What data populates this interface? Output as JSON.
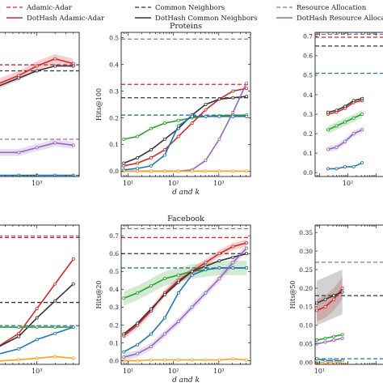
{
  "legend": {
    "items": [
      {
        "label": "Adamic-Adar",
        "color": "#d62728",
        "dashed": true
      },
      {
        "label": "DotHash Adamic-Adar",
        "color": "#d62728",
        "dashed": false
      },
      {
        "label": "Common Neighbors",
        "color": "#333333",
        "dashed": true
      },
      {
        "label": "DotHash Common Neighbors",
        "color": "#333333",
        "dashed": false
      },
      {
        "label": "Resource Allocation",
        "color": "#9467bd",
        "dashed": true
      },
      {
        "label": "DotHash Resource Allocation",
        "color": "#9467bd",
        "dashed": false
      }
    ]
  },
  "colors": {
    "red": "#d62728",
    "black": "#333333",
    "purple": "#9467bd",
    "blue": "#1f77b4",
    "green": "#2ca02c",
    "orange": "#ff9f1c"
  },
  "chart_data": [
    {
      "type": "line",
      "title": "",
      "xlabel": "",
      "ylabel": "",
      "xscale": "log",
      "xlim": [
        180,
        5000
      ],
      "ylim": [
        0,
        0.6
      ],
      "xticks": [
        {
          "v": 1000,
          "label": "10³"
        }
      ],
      "yticks": [],
      "series": [
        {
          "color": "red",
          "x": [
            200,
            500,
            1000,
            2000,
            4000
          ],
          "y": [
            0.38,
            0.42,
            0.46,
            0.49,
            0.47
          ],
          "band": 0.02
        },
        {
          "color": "black",
          "x": [
            200,
            500,
            1000,
            2000,
            4000
          ],
          "y": [
            0.37,
            0.41,
            0.44,
            0.46,
            0.46
          ]
        },
        {
          "color": "purple",
          "x": [
            200,
            500,
            1000,
            2000,
            4000
          ],
          "y": [
            0.1,
            0.1,
            0.12,
            0.14,
            0.13
          ],
          "band": 0.015
        },
        {
          "color": "blue",
          "x": [
            200,
            500,
            1000,
            2000,
            4000
          ],
          "y": [
            0.005,
            0.005,
            0.005,
            0.005,
            0.005
          ]
        }
      ],
      "hlines": [
        {
          "color": "red",
          "y": 0.465
        },
        {
          "color": "black",
          "y": 0.44
        },
        {
          "color": "purple",
          "y": 0.155
        },
        {
          "color": "blue",
          "y": 0.005
        }
      ]
    },
    {
      "type": "line",
      "title": "Proteins",
      "xlabel": "d and k",
      "ylabel": "Hits@100",
      "xscale": "log",
      "xlim": [
        7,
        5000
      ],
      "ylim": [
        -0.02,
        0.52
      ],
      "xticks": [
        {
          "v": 10,
          "label": "10¹"
        },
        {
          "v": 100,
          "label": "10²"
        },
        {
          "v": 1000,
          "label": "10³"
        }
      ],
      "yticks": [
        {
          "v": 0.0,
          "label": "0.0"
        },
        {
          "v": 0.1,
          "label": "0.1"
        },
        {
          "v": 0.2,
          "label": "0.2"
        },
        {
          "v": 0.3,
          "label": "0.3"
        },
        {
          "v": 0.4,
          "label": "0.4"
        },
        {
          "v": 0.5,
          "label": "0.5"
        }
      ],
      "series": [
        {
          "color": "green",
          "x": [
            8,
            16,
            32,
            64,
            128,
            256,
            512,
            1024,
            2048,
            4096
          ],
          "y": [
            0.12,
            0.13,
            0.16,
            0.18,
            0.19,
            0.2,
            0.205,
            0.208,
            0.21,
            0.21
          ]
        },
        {
          "color": "red",
          "x": [
            8,
            16,
            32,
            64,
            128,
            256,
            512,
            1024,
            2048,
            4096
          ],
          "y": [
            0.02,
            0.03,
            0.05,
            0.08,
            0.13,
            0.18,
            0.23,
            0.27,
            0.3,
            0.31
          ]
        },
        {
          "color": "black",
          "x": [
            8,
            16,
            32,
            64,
            128,
            256,
            512,
            1024,
            2048,
            4096
          ],
          "y": [
            0.03,
            0.05,
            0.08,
            0.12,
            0.16,
            0.21,
            0.25,
            0.27,
            0.275,
            0.28
          ]
        },
        {
          "color": "blue",
          "x": [
            8,
            16,
            32,
            64,
            128,
            256,
            512,
            1024,
            2048,
            4096
          ],
          "y": [
            0.005,
            0.01,
            0.02,
            0.06,
            0.17,
            0.205,
            0.205,
            0.205,
            0.205,
            0.205
          ]
        },
        {
          "color": "purple",
          "x": [
            8,
            16,
            32,
            64,
            128,
            256,
            512,
            1024,
            2048,
            4096
          ],
          "y": [
            0.0,
            0.0,
            0.0,
            0.0,
            0.0,
            0.005,
            0.04,
            0.12,
            0.22,
            0.33
          ]
        },
        {
          "color": "orange",
          "x": [
            8,
            16,
            32,
            64,
            128,
            256,
            512,
            1024,
            2048,
            4096
          ],
          "y": [
            0.0,
            0.0,
            0.0,
            0.0,
            0.0,
            0.0,
            0.0,
            0.0,
            0.0,
            0.0
          ]
        }
      ],
      "hlines": [
        {
          "color": "purple",
          "y": 0.495
        },
        {
          "color": "red",
          "y": 0.325
        },
        {
          "color": "black",
          "y": 0.275
        },
        {
          "color": "blue",
          "y": 0.21
        }
      ]
    },
    {
      "type": "line",
      "title": "",
      "xlabel": "",
      "ylabel": "",
      "xscale": "log",
      "xlim": [
        7,
        5000
      ],
      "ylim": [
        -0.02,
        0.72
      ],
      "xticks": [
        {
          "v": 100,
          "label": "10²"
        }
      ],
      "yticks": [
        {
          "v": 0.0,
          "label": "0.0"
        },
        {
          "v": 0.1,
          "label": "0.1"
        },
        {
          "v": 0.2,
          "label": "0.2"
        },
        {
          "v": 0.3,
          "label": "0.3"
        },
        {
          "v": 0.4,
          "label": "0.4"
        },
        {
          "v": 0.5,
          "label": "0.5"
        },
        {
          "v": 0.6,
          "label": "0.6"
        },
        {
          "v": 0.7,
          "label": "0.7"
        }
      ],
      "series": [
        {
          "color": "red",
          "x": [
            20,
            40,
            80,
            160,
            320
          ],
          "y": [
            0.3,
            0.31,
            0.33,
            0.36,
            0.37
          ]
        },
        {
          "color": "black",
          "x": [
            20,
            40,
            80,
            160,
            320
          ],
          "y": [
            0.31,
            0.32,
            0.34,
            0.37,
            0.38
          ]
        },
        {
          "color": "green",
          "x": [
            20,
            40,
            80,
            160,
            320
          ],
          "y": [
            0.22,
            0.24,
            0.26,
            0.28,
            0.3
          ],
          "band": 0.02
        },
        {
          "color": "purple",
          "x": [
            20,
            40,
            80,
            160,
            320
          ],
          "y": [
            0.12,
            0.13,
            0.16,
            0.2,
            0.22
          ],
          "band": 0.015
        },
        {
          "color": "blue",
          "x": [
            20,
            40,
            80,
            160,
            320
          ],
          "y": [
            0.02,
            0.02,
            0.03,
            0.03,
            0.05
          ]
        }
      ],
      "hlines": [
        {
          "color": "purple",
          "y": 0.71
        },
        {
          "color": "red",
          "y": 0.695
        },
        {
          "color": "black",
          "y": 0.65
        },
        {
          "color": "blue",
          "y": 0.51
        }
      ]
    },
    {
      "type": "line",
      "title": "",
      "xlabel": "",
      "ylabel": "",
      "xscale": "log",
      "xlim": [
        180,
        5000
      ],
      "ylim": [
        0,
        0.9
      ],
      "xticks": [
        {
          "v": 1000,
          "label": "10³"
        }
      ],
      "yticks": [],
      "series": [
        {
          "color": "red",
          "x": [
            200,
            500,
            1000,
            2000,
            4000
          ],
          "y": [
            0.1,
            0.2,
            0.36,
            0.52,
            0.68
          ]
        },
        {
          "color": "black",
          "x": [
            200,
            500,
            1000,
            2000,
            4000
          ],
          "y": [
            0.1,
            0.18,
            0.3,
            0.41,
            0.52
          ]
        },
        {
          "color": "green",
          "x": [
            200,
            500,
            1000,
            2000,
            4000
          ],
          "y": [
            0.24,
            0.24,
            0.24,
            0.24,
            0.24
          ]
        },
        {
          "color": "blue",
          "x": [
            200,
            500,
            1000,
            2000,
            4000
          ],
          "y": [
            0.06,
            0.1,
            0.16,
            0.2,
            0.24
          ]
        },
        {
          "color": "orange",
          "x": [
            200,
            500,
            1000,
            2000,
            4000
          ],
          "y": [
            0.02,
            0.03,
            0.04,
            0.05,
            0.04
          ]
        }
      ],
      "hlines": [
        {
          "color": "red",
          "y": 0.82
        },
        {
          "color": "purple",
          "y": 0.83
        },
        {
          "color": "black",
          "y": 0.4
        },
        {
          "color": "blue",
          "y": 0.25
        }
      ]
    },
    {
      "type": "line",
      "title": "Facebook",
      "xlabel": "d and k",
      "ylabel": "Hits@20",
      "xscale": "log",
      "xlim": [
        7,
        5000
      ],
      "ylim": [
        -0.02,
        0.76
      ],
      "xticks": [
        {
          "v": 10,
          "label": "10¹"
        },
        {
          "v": 100,
          "label": "10²"
        },
        {
          "v": 1000,
          "label": "10³"
        }
      ],
      "yticks": [
        {
          "v": 0.0,
          "label": "0.0"
        },
        {
          "v": 0.1,
          "label": "0.1"
        },
        {
          "v": 0.2,
          "label": "0.2"
        },
        {
          "v": 0.3,
          "label": "0.3"
        },
        {
          "v": 0.4,
          "label": "0.4"
        },
        {
          "v": 0.5,
          "label": "0.5"
        },
        {
          "v": 0.6,
          "label": "0.6"
        },
        {
          "v": 0.7,
          "label": "0.7"
        }
      ],
      "series": [
        {
          "color": "green",
          "x": [
            8,
            16,
            32,
            64,
            128,
            256,
            512,
            1024,
            2048,
            4096
          ],
          "y": [
            0.35,
            0.38,
            0.42,
            0.46,
            0.48,
            0.5,
            0.51,
            0.52,
            0.52,
            0.52
          ],
          "band": 0.04
        },
        {
          "color": "red",
          "x": [
            8,
            16,
            32,
            64,
            128,
            256,
            512,
            1024,
            2048,
            4096
          ],
          "y": [
            0.14,
            0.2,
            0.28,
            0.38,
            0.45,
            0.5,
            0.55,
            0.6,
            0.64,
            0.66
          ],
          "band": 0.02
        },
        {
          "color": "black",
          "x": [
            8,
            16,
            32,
            64,
            128,
            256,
            512,
            1024,
            2048,
            4096
          ],
          "y": [
            0.15,
            0.21,
            0.29,
            0.37,
            0.44,
            0.5,
            0.53,
            0.56,
            0.58,
            0.6
          ]
        },
        {
          "color": "blue",
          "x": [
            8,
            16,
            32,
            64,
            128,
            256,
            512,
            1024,
            2048,
            4096
          ],
          "y": [
            0.05,
            0.09,
            0.15,
            0.24,
            0.38,
            0.48,
            0.51,
            0.52,
            0.52,
            0.52
          ]
        },
        {
          "color": "purple",
          "x": [
            8,
            16,
            32,
            64,
            128,
            256,
            512,
            1024,
            2048,
            4096
          ],
          "y": [
            0.02,
            0.04,
            0.08,
            0.15,
            0.22,
            0.3,
            0.38,
            0.46,
            0.55,
            0.63
          ],
          "band": 0.02
        },
        {
          "color": "orange",
          "x": [
            8,
            16,
            32,
            64,
            128,
            256,
            512,
            1024,
            2048,
            4096
          ],
          "y": [
            0.0,
            0.0,
            0.005,
            0.005,
            0.005,
            0.005,
            0.005,
            0.005,
            0.01,
            0.005
          ]
        }
      ],
      "hlines": [
        {
          "color": "purple",
          "y": 0.74
        },
        {
          "color": "red",
          "y": 0.69
        },
        {
          "color": "black",
          "y": 0.6
        },
        {
          "color": "blue",
          "y": 0.52
        }
      ]
    },
    {
      "type": "line",
      "title": "",
      "xlabel": "",
      "ylabel": "Hits@50",
      "xscale": "log",
      "xlim": [
        7,
        5000
      ],
      "ylim": [
        -0.005,
        0.37
      ],
      "xticks": [
        {
          "v": 10,
          "label": "10¹"
        }
      ],
      "yticks": [
        {
          "v": 0.0,
          "label": "0.00"
        },
        {
          "v": 0.05,
          "label": "0.05"
        },
        {
          "v": 0.1,
          "label": "0.10"
        },
        {
          "v": 0.15,
          "label": "0.15"
        },
        {
          "v": 0.2,
          "label": "0.20"
        },
        {
          "v": 0.25,
          "label": "0.25"
        },
        {
          "v": 0.3,
          "label": "0.30"
        },
        {
          "v": 0.35,
          "label": "0.35"
        }
      ],
      "series": [
        {
          "color": "red",
          "x": [
            8,
            16,
            32,
            64
          ],
          "y": [
            0.14,
            0.15,
            0.17,
            0.2
          ],
          "band": 0.03
        },
        {
          "color": "black",
          "x": [
            8,
            16,
            32,
            64
          ],
          "y": [
            0.16,
            0.17,
            0.18,
            0.19
          ],
          "band": 0.06
        },
        {
          "color": "purple",
          "x": [
            8,
            16,
            32,
            64
          ],
          "y": [
            0.05,
            0.055,
            0.06,
            0.065
          ]
        },
        {
          "color": "green",
          "x": [
            8,
            16,
            32,
            64
          ],
          "y": [
            0.06,
            0.065,
            0.07,
            0.075
          ]
        },
        {
          "color": "blue",
          "x": [
            8,
            16,
            32,
            64
          ],
          "y": [
            0.01,
            0.005,
            0.005,
            0.005
          ]
        },
        {
          "color": "orange",
          "x": [
            8,
            16,
            32,
            64
          ],
          "y": [
            0.0,
            0.0,
            0.0,
            0.0
          ]
        }
      ],
      "hlines": [
        {
          "color": "purple",
          "y": 0.27
        },
        {
          "color": "black",
          "y": 0.18
        },
        {
          "color": "blue",
          "y": 0.01
        }
      ]
    }
  ]
}
